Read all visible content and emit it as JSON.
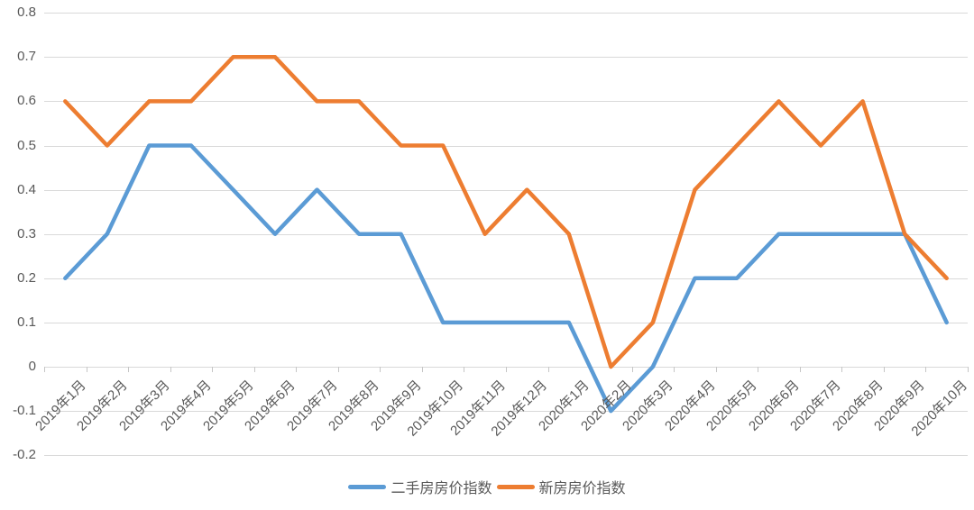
{
  "chart_data": {
    "type": "line",
    "title": "",
    "categories": [
      "2019年1月",
      "2019年2月",
      "2019年3月",
      "2019年4月",
      "2019年5月",
      "2019年6月",
      "2019年7月",
      "2019年8月",
      "2019年9月",
      "2019年10月",
      "2019年11月",
      "2019年12月",
      "2020年1月",
      "2020年2月",
      "2020年3月",
      "2020年4月",
      "2020年5月",
      "2020年6月",
      "2020年7月",
      "2020年8月",
      "2020年9月",
      "2020年10月"
    ],
    "series": [
      {
        "name": "二手房房价指数",
        "color": "#5B9BD5",
        "values": [
          0.2,
          0.3,
          0.5,
          0.5,
          0.4,
          0.3,
          0.4,
          0.3,
          0.3,
          0.1,
          0.1,
          0.1,
          0.1,
          -0.1,
          0,
          0.2,
          0.2,
          0.3,
          0.3,
          0.3,
          0.3,
          0.1
        ]
      },
      {
        "name": "新房房价指数",
        "color": "#ED7D31",
        "values": [
          0.6,
          0.5,
          0.6,
          0.6,
          0.7,
          0.7,
          0.6,
          0.6,
          0.5,
          0.5,
          0.3,
          0.4,
          0.3,
          0,
          0.1,
          0.4,
          0.5,
          0.6,
          0.5,
          0.6,
          0.3,
          0.2
        ]
      }
    ],
    "xlabel": "",
    "ylabel": "",
    "ylim": [
      -0.2,
      0.8
    ],
    "y_ticks": [
      {
        "label": "0.8",
        "value": 0.8
      },
      {
        "label": "0.7",
        "value": 0.7
      },
      {
        "label": "0.6",
        "value": 0.6
      },
      {
        "label": "0.5",
        "value": 0.5
      },
      {
        "label": "0.4",
        "value": 0.4
      },
      {
        "label": "0.3",
        "value": 0.3
      },
      {
        "label": "0.2",
        "value": 0.2
      },
      {
        "label": "0.1",
        "value": 0.1
      },
      {
        "label": "0",
        "value": 0
      },
      {
        "label": "-0.1",
        "value": -0.1
      },
      {
        "label": "-0.2",
        "value": -0.2
      }
    ],
    "grid": "horizontal",
    "legend_position": "bottom",
    "colors": {
      "gridline": "#D9D9D9",
      "tick": "#C6C6C6",
      "axis_text": "#595959",
      "background": "#FFFFFF"
    }
  }
}
